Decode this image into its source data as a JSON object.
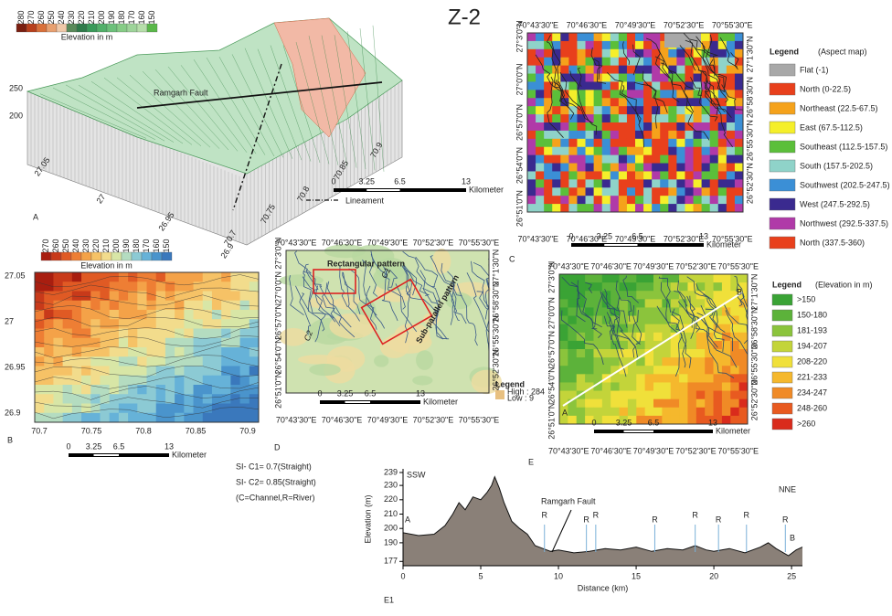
{
  "figure_label": "Z-2",
  "map_grid": {
    "lon": [
      "70°43'30\"E",
      "70°46'30\"E",
      "70°49'30\"E",
      "70°52'30\"E",
      "70°55'30\"E"
    ],
    "lat_left": [
      "27°3'0\"N",
      "27°0'0\"N",
      "26°57'0\"N",
      "26°54'0\"N",
      "26°51'0\"N"
    ],
    "lat_right": [
      "27°1'30\"N",
      "26°58'30\"N",
      "26°55'30\"N",
      "26°52'30\"N"
    ]
  },
  "scale_bar": {
    "ticks": [
      "0",
      "3.25",
      "6.5",
      "13"
    ],
    "unit": "Kilometer"
  },
  "panel_a": {
    "label": "A",
    "legend_title": "Elevation in m",
    "legend_ticks": [
      "280",
      "270",
      "260",
      "250",
      "240",
      "230",
      "220",
      "210",
      "200",
      "190",
      "180",
      "170",
      "160",
      "150"
    ],
    "colors": [
      "#7a1f10",
      "#b8401c",
      "#d9703a",
      "#e8a070",
      "#f0c8a8",
      "#5a8a5a",
      "#2f7a4a",
      "#3a9a5a",
      "#52b06a",
      "#6cc07a",
      "#86cc86",
      "#9ed49a",
      "#b6deaa",
      "#5ab84a"
    ],
    "fault_label": "Ramgarh Fault",
    "lineament_label": "Lineament",
    "z_ticks": [
      "250",
      "200"
    ],
    "lat_ticks": [
      "27.05",
      "27",
      "26.95",
      "26.9"
    ],
    "lon_ticks": [
      "70.7",
      "70.75",
      "70.8",
      "70.85",
      "70.9"
    ]
  },
  "panel_b": {
    "label": "B",
    "legend_title": "Elevation in m",
    "legend_ticks": [
      "270",
      "260",
      "250",
      "240",
      "230",
      "220",
      "210",
      "200",
      "190",
      "180",
      "170",
      "160",
      "150"
    ],
    "colors": [
      "#a81e10",
      "#c83a1a",
      "#e05a24",
      "#ee7e34",
      "#f4a248",
      "#f6c266",
      "#f2dc8c",
      "#d8e6a6",
      "#b4dcc0",
      "#8ccad4",
      "#66b2d8",
      "#4a94cc",
      "#3a78bc"
    ],
    "lat_ticks": [
      "27.05",
      "27",
      "26.95",
      "26.9"
    ],
    "lon_ticks": [
      "70.7",
      "70.75",
      "70.8",
      "70.85",
      "70.9"
    ]
  },
  "panel_c": {
    "label": "C",
    "legend_title": "Legend",
    "legend_subtitle": "(Aspect map)",
    "legend_items": [
      {
        "label": "Flat (-1)",
        "color": "#a8a8a8"
      },
      {
        "label": "North (0-22.5)",
        "color": "#e8401c"
      },
      {
        "label": "Northeast (22.5-67.5)",
        "color": "#f5a21b"
      },
      {
        "label": "East (67.5-112.5)",
        "color": "#f5ef2a"
      },
      {
        "label": "Southeast (112.5-157.5)",
        "color": "#5bbf3a"
      },
      {
        "label": "South (157.5-202.5)",
        "color": "#8fd3c9"
      },
      {
        "label": "Southwest (202.5-247.5)",
        "color": "#3b8fd6"
      },
      {
        "label": "West (247.5-292.5)",
        "color": "#3a2a8f"
      },
      {
        "label": "Northwest (292.5-337.5)",
        "color": "#b03aa8"
      },
      {
        "label": "North (337.5-360)",
        "color": "#e8401c"
      }
    ]
  },
  "panel_d": {
    "label": "D",
    "rect_pattern": "Rectangular pattern",
    "subparallel_pattern": "Sub-parallel pattern",
    "channel_1": "C1",
    "channel_2": "C2",
    "legend_title": "Legend",
    "legend_high": "High : 284",
    "legend_low": "Low : 9"
  },
  "panel_e": {
    "label": "E",
    "legend_title": "Legend",
    "legend_subtitle": "(Elevation in m)",
    "legend_items": [
      {
        "label": ">150",
        "color": "#3aa335"
      },
      {
        "label": "150-180",
        "color": "#5cb23a"
      },
      {
        "label": "181-193",
        "color": "#8bc43c"
      },
      {
        "label": "194-207",
        "color": "#c3d43a"
      },
      {
        "label": "208-220",
        "color": "#f0e03a"
      },
      {
        "label": "221-233",
        "color": "#f5b82d"
      },
      {
        "label": "234-247",
        "color": "#f08a26"
      },
      {
        "label": "248-260",
        "color": "#e85a20"
      },
      {
        "label": ">260",
        "color": "#d92b1c"
      }
    ],
    "point_a": "A",
    "point_b": "B"
  },
  "notes": [
    "SI- C1= 0.7(Straight)",
    "SI- C2= 0.85(Straight)",
    "(C=Channel,R=River)"
  ],
  "chart_data": {
    "type": "area",
    "label": "E1",
    "x_label": "Distance (km)",
    "y_label": "Elevation (m)",
    "direction_left": "SSW",
    "direction_right": "NNE",
    "point_a": "A",
    "point_b": "B",
    "fault_label": "Ramgarh Fault",
    "river_labels": [
      "R",
      "R",
      "R",
      "R",
      "R",
      "R",
      "R",
      "R"
    ],
    "x": [
      0,
      1,
      2,
      2.7,
      3.2,
      3.6,
      4,
      4.5,
      5,
      5.4,
      5.7,
      5.9,
      6.2,
      6.5,
      7,
      7.5,
      8,
      8.5,
      9,
      9.5,
      10,
      11,
      12,
      13,
      14,
      15,
      16,
      17,
      18,
      18.8,
      19.5,
      20,
      21,
      22,
      23,
      23.5,
      24,
      24.8,
      25.3,
      25.7
    ],
    "values": [
      197,
      195,
      196,
      202,
      210,
      218,
      213,
      222,
      220,
      225,
      230,
      236,
      228,
      218,
      205,
      200,
      196,
      188,
      186,
      184,
      185,
      183,
      184,
      186,
      185,
      187,
      184,
      186,
      185,
      188,
      185,
      184,
      186,
      183,
      187,
      190,
      186,
      181,
      185,
      187
    ],
    "color": "#8a8078",
    "xlim": [
      0,
      25.7
    ],
    "ylim": [
      174,
      239
    ],
    "xticks": [
      0,
      5,
      10,
      15,
      20,
      25
    ],
    "yticks": [
      177,
      190,
      200,
      210,
      220,
      230,
      239
    ]
  }
}
